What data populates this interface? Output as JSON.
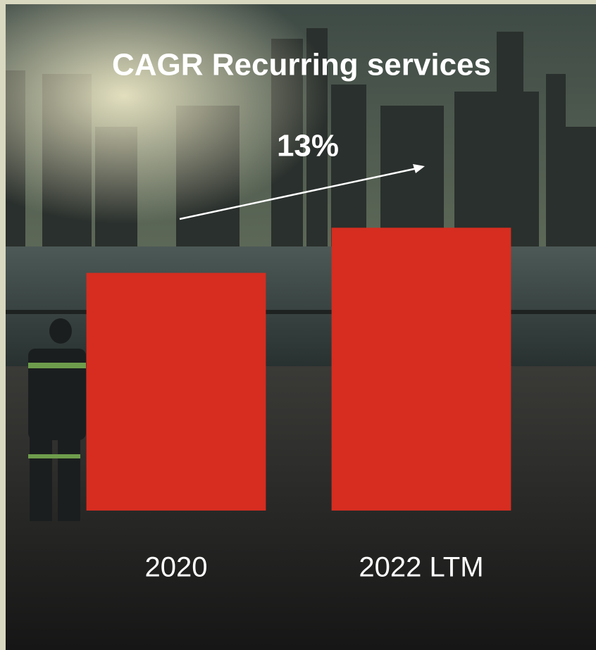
{
  "chart_data": {
    "type": "bar",
    "title": "CAGR Recurring services",
    "annotation": "13%",
    "categories": [
      "2020",
      "2022 LTM"
    ],
    "values": [
      100,
      119
    ],
    "color": "#d62d20",
    "ylim": [
      0,
      120
    ]
  }
}
